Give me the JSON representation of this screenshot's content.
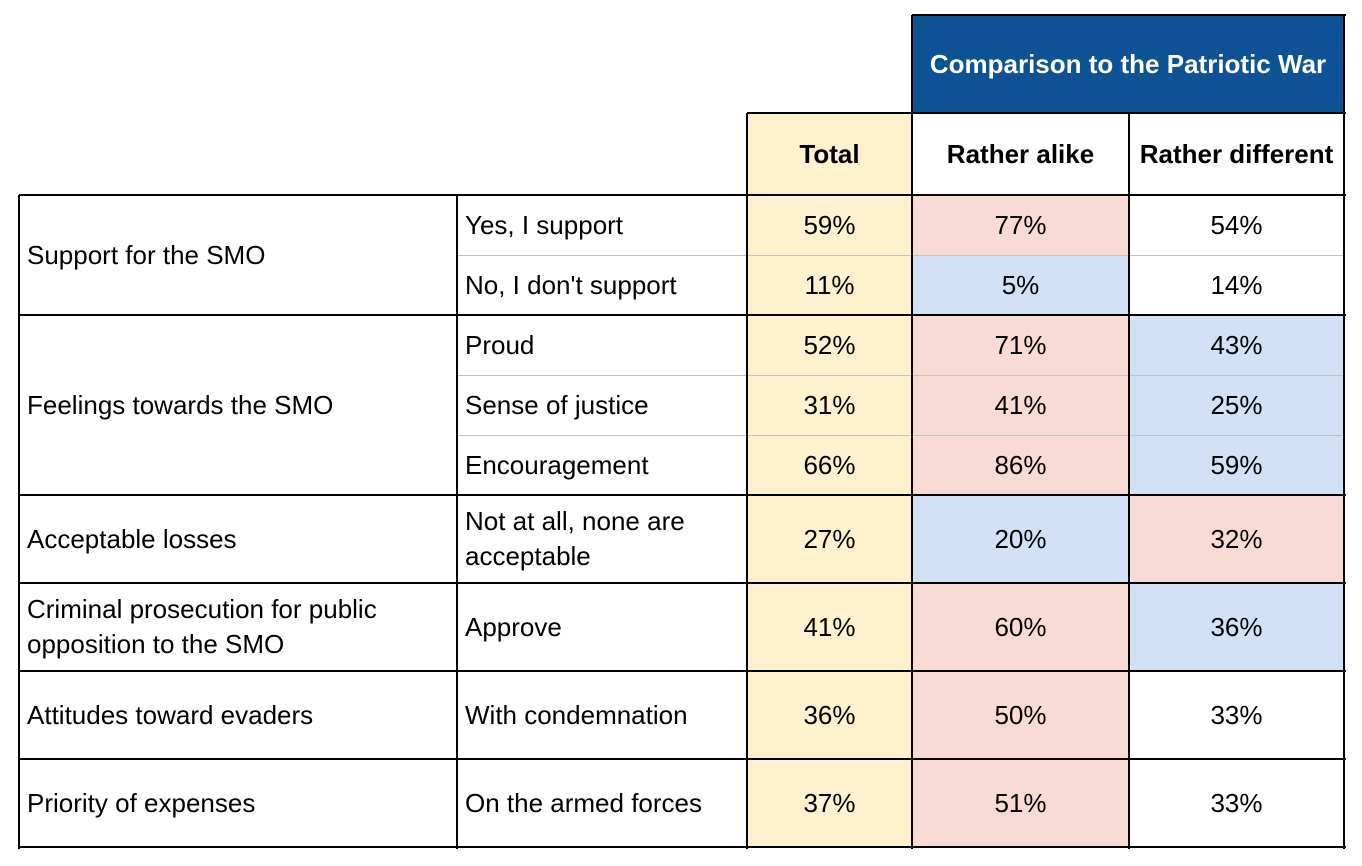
{
  "chart_data": {
    "type": "table",
    "banner": "Comparison to the Patriotic War",
    "columns": [
      "Total",
      "Rather alike",
      "Rather different"
    ],
    "rows": [
      {
        "category": "Support for the SMO",
        "answer": "Yes, I support",
        "values": [
          "59%",
          "77%",
          "54%"
        ],
        "colors": [
          "yellow",
          "red",
          "white"
        ]
      },
      {
        "category": "Support for the SMO",
        "answer": "No, I don't support",
        "values": [
          "11%",
          "5%",
          "14%"
        ],
        "colors": [
          "yellow",
          "blue",
          "white"
        ]
      },
      {
        "category": "Feelings towards the SMO",
        "answer": "Proud",
        "values": [
          "52%",
          "71%",
          "43%"
        ],
        "colors": [
          "yellow",
          "red",
          "blue"
        ]
      },
      {
        "category": "Feelings towards the SMO",
        "answer": "Sense of justice",
        "values": [
          "31%",
          "41%",
          "25%"
        ],
        "colors": [
          "yellow",
          "red",
          "blue"
        ]
      },
      {
        "category": "Feelings towards the SMO",
        "answer": "Encouragement",
        "values": [
          "66%",
          "86%",
          "59%"
        ],
        "colors": [
          "yellow",
          "red",
          "blue"
        ]
      },
      {
        "category": "Acceptable losses",
        "answer": "Not at all, none are acceptable",
        "values": [
          "27%",
          "20%",
          "32%"
        ],
        "colors": [
          "yellow",
          "blue",
          "red"
        ]
      },
      {
        "category": "Criminal prosecution for public opposition to the SMO",
        "answer": "Approve",
        "values": [
          "41%",
          "60%",
          "36%"
        ],
        "colors": [
          "yellow",
          "red",
          "blue"
        ]
      },
      {
        "category": "Attitudes toward evaders",
        "answer": "With condemnation",
        "values": [
          "36%",
          "50%",
          "33%"
        ],
        "colors": [
          "yellow",
          "red",
          "white"
        ]
      },
      {
        "category": "Priority of expenses",
        "answer": "On the armed forces",
        "values": [
          "37%",
          "51%",
          "33%"
        ],
        "colors": [
          "yellow",
          "red",
          "white"
        ]
      }
    ],
    "highlight_colors": {
      "banner": "#0c5294",
      "yellow": "#fef1cd",
      "red": "#f9dbd6",
      "blue": "#d2e1f6",
      "white": "#ffffff"
    }
  }
}
